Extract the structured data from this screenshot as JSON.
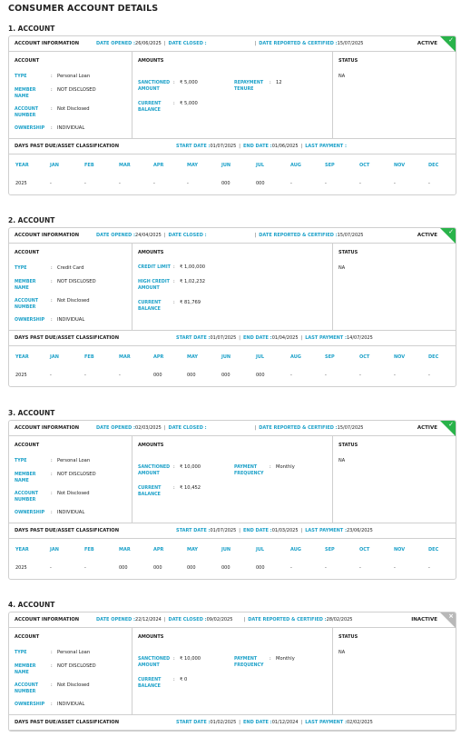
{
  "page_title": "CONSUMER ACCOUNT DETAILS",
  "labels": {
    "account_information": "ACCOUNT INFORMATION",
    "date_opened": "DATE OPENED :",
    "date_closed": "DATE CLOSED :",
    "date_reported": "DATE REPORTED & CERTIFIED :",
    "account_col": "ACCOUNT",
    "amounts_col": "AMOUNTS",
    "status_col": "STATUS",
    "type": "TYPE",
    "member_name": "MEMBER NAME",
    "account_number": "ACCOUNT NUMBER",
    "ownership": "OWNERSHIP",
    "dpd_title": "DAYS PAST DUE/ASSET CLASSIFICATION",
    "start_date": "START DATE :",
    "end_date": "END DATE :",
    "last_payment": "LAST PAYMENT :",
    "months": [
      "YEAR",
      "JAN",
      "FEB",
      "MAR",
      "APR",
      "MAY",
      "JUN",
      "JUL",
      "AUG",
      "SEP",
      "OCT",
      "NOV",
      "DEC"
    ]
  },
  "accounts": [
    {
      "title": "1. ACCOUNT",
      "date_opened": "26/06/2025",
      "date_closed": "",
      "date_reported": "15/07/2025",
      "status_badge": "ACTIVE",
      "badge_color": "#29b34a",
      "type": "Personal Loan",
      "member_name": "NOT DISCLOSED",
      "account_number": "Not Disclosed",
      "ownership": "INDIVIDUAL",
      "amounts_left": [
        {
          "k": "SANCTIONED AMOUNT",
          "v": "₹ 5,000"
        },
        {
          "k": "CURRENT BALANCE",
          "v": "₹ 5,000"
        }
      ],
      "amounts_right": [
        {
          "k": "REPAYMENT TENURE",
          "v": "12"
        }
      ],
      "status": "NA",
      "start_date": "01/07/2025",
      "end_date": "01/06/2025",
      "last_payment": "",
      "dpd_row": [
        "2025",
        "-",
        "-",
        "-",
        "-",
        "-",
        "000",
        "000",
        "-",
        "-",
        "-",
        "-",
        "-"
      ]
    },
    {
      "title": "2. ACCOUNT",
      "date_opened": "24/04/2025",
      "date_closed": "",
      "date_reported": "15/07/2025",
      "status_badge": "ACTIVE",
      "badge_color": "#29b34a",
      "type": "Credit Card",
      "member_name": "NOT DISCLOSED",
      "account_number": "Not Disclosed",
      "ownership": "INDIVIDUAL",
      "amounts_left": [
        {
          "k": "CREDIT LIMIT",
          "v": "₹ 1,00,000"
        },
        {
          "k": "HIGH CREDIT AMOUNT",
          "v": "₹ 1,02,232"
        },
        {
          "k": "CURRENT BALANCE",
          "v": "₹ 81,769"
        }
      ],
      "amounts_right": [],
      "status": "NA",
      "start_date": "01/07/2025",
      "end_date": "01/04/2025",
      "last_payment": "14/07/2025",
      "dpd_row": [
        "2025",
        "-",
        "-",
        "-",
        "000",
        "000",
        "000",
        "000",
        "-",
        "-",
        "-",
        "-",
        "-"
      ]
    },
    {
      "title": "3. ACCOUNT",
      "date_opened": "02/03/2025",
      "date_closed": "",
      "date_reported": "15/07/2025",
      "status_badge": "ACTIVE",
      "badge_color": "#29b34a",
      "type": "Personal Loan",
      "member_name": "NOT DISCLOSED",
      "account_number": "Not Disclosed",
      "ownership": "INDIVIDUAL",
      "amounts_left": [
        {
          "k": "SANCTIONED AMOUNT",
          "v": "₹ 10,000"
        },
        {
          "k": "CURRENT BALANCE",
          "v": "₹ 10,452"
        }
      ],
      "amounts_right": [
        {
          "k": "PAYMENT FREQUENCY",
          "v": "Monthly"
        }
      ],
      "status": "NA",
      "start_date": "01/07/2025",
      "end_date": "01/03/2025",
      "last_payment": "23/06/2025",
      "dpd_row": [
        "2025",
        "-",
        "-",
        "000",
        "000",
        "000",
        "000",
        "000",
        "-",
        "-",
        "-",
        "-",
        "-"
      ]
    },
    {
      "title": "4. ACCOUNT",
      "date_opened": "22/12/2024",
      "date_closed": "09/02/2025",
      "date_reported": "28/02/2025",
      "status_badge": "INACTIVE",
      "badge_color": "#b8b8b8",
      "type": "Personal Loan",
      "member_name": "NOT DISCLOSED",
      "account_number": "Not Disclosed",
      "ownership": "INDIVIDUAL",
      "amounts_left": [
        {
          "k": "SANCTIONED AMOUNT",
          "v": "₹ 10,000"
        },
        {
          "k": "CURRENT BALANCE",
          "v": "₹ 0"
        }
      ],
      "amounts_right": [
        {
          "k": "PAYMENT FREQUENCY",
          "v": "Monthly"
        }
      ],
      "status": "NA",
      "start_date": "01/02/2025",
      "end_date": "01/12/2024",
      "last_payment": "02/02/2025",
      "dpd_row": []
    }
  ]
}
